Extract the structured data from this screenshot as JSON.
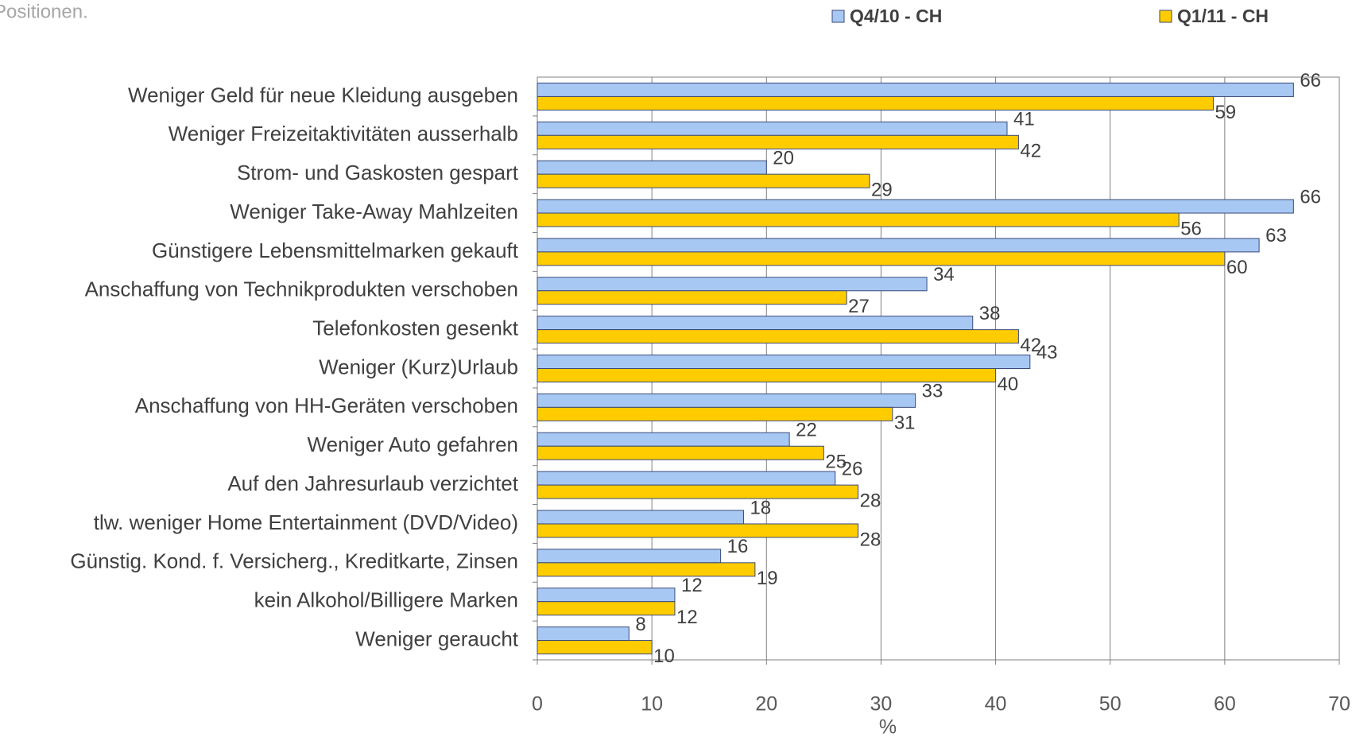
{
  "chart_data": {
    "type": "hbar",
    "subtitle": "Positionen.",
    "xlabel": "%",
    "categories": [
      "Weniger Geld für neue Kleidung ausgeben",
      "Weniger Freizeitaktivitäten ausserhalb",
      "Strom- und Gaskosten gespart",
      "Weniger Take-Away Mahlzeiten",
      "Günstigere Lebensmittelmarken gekauft",
      "Anschaffung von Technikprodukten verschoben",
      "Telefonkosten gesenkt",
      "Weniger (Kurz)Urlaub",
      "Anschaffung von HH-Geräten verschoben",
      "Weniger Auto gefahren",
      "Auf den Jahresurlaub verzichtet",
      "tlw. weniger Home Entertainment (DVD/Video)",
      "Günstig. Kond. f. Versicherg., Kreditkarte, Zinsen",
      "kein Alkohol/Billigere Marken",
      "Weniger geraucht"
    ],
    "series": [
      {
        "name": "Q4/10 - CH",
        "color": "#a8c8f4",
        "values": [
          66,
          41,
          20,
          66,
          63,
          34,
          38,
          43,
          33,
          22,
          26,
          18,
          16,
          12,
          8
        ]
      },
      {
        "name": "Q1/11 - CH",
        "color": "#ffcc00",
        "values": [
          59,
          42,
          29,
          56,
          60,
          27,
          42,
          40,
          31,
          25,
          28,
          28,
          19,
          12,
          10
        ]
      }
    ],
    "xlim": [
      0,
      70
    ],
    "xticks": [
      0,
      10,
      20,
      30,
      40,
      50,
      60,
      70
    ],
    "grid": true
  }
}
